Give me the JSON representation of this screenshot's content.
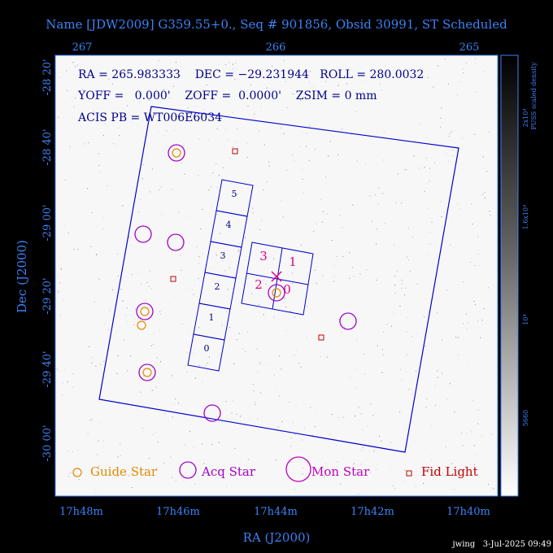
{
  "title": "Name [JDW2009] G359.55+0., Seq # 901856, Obsid 30991, ST Scheduled",
  "top_axis_ticks": [
    "267",
    "266",
    "265"
  ],
  "bottom_axis_ticks": [
    "17h48m",
    "17h46m",
    "17h44m",
    "17h42m",
    "17h40m"
  ],
  "left_axis_ticks": [
    "-28 20'",
    "-28 40'",
    "-29 00'",
    "-29 20'",
    "-29 40'",
    "-30 00'"
  ],
  "xlabel": "RA (J2000)",
  "ylabel": "Dec (J2000)",
  "info": {
    "line1": "RA = 265.983333    DEC = −29.231944   ROLL = 280.0032",
    "line2": "YOFF =   0.000'    ZOFF =  0.0000'    ZSIM = 0 mm",
    "line3": "ACIS PB = WT006E6034"
  },
  "chips_s": [
    "5",
    "4",
    "3",
    "2",
    "1",
    "0"
  ],
  "chips_i": [
    "3",
    "1",
    "2",
    "0"
  ],
  "legend": {
    "guide": "Guide Star",
    "acq": "Acq Star",
    "mon": "Mon Star",
    "fid": "Fid Light"
  },
  "colorbar": {
    "label": "PUSS scaled density",
    "ticks": [
      "2x10⁴",
      "1.6x10⁴",
      "10⁴",
      "5660"
    ]
  },
  "footer": "jwing   3-Jul-2025 09:49",
  "colors": {
    "axis": "#3b82f6",
    "guide": "#e08a00",
    "acq": "#a300c8",
    "mon": "#c000c0",
    "fid": "#c00000",
    "chip_label_i": "#e0008a",
    "fov": "#0000cc"
  }
}
